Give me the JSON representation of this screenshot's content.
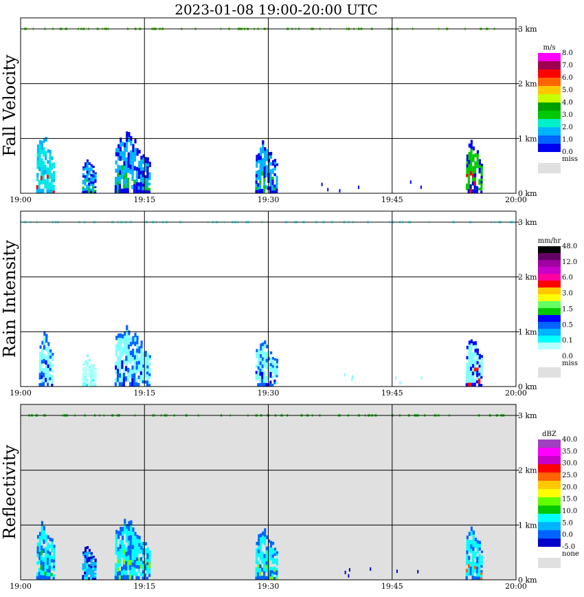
{
  "title": "2023-01-08   19:00-20:00 UTC",
  "chart_data": {
    "type": "heatmap",
    "x_tick_labels": [
      "19:00",
      "19:15",
      "19:30",
      "19:45",
      "20:00"
    ],
    "x_ticks_minutes": [
      0,
      15,
      30,
      45,
      60
    ],
    "xlim_minutes": [
      0,
      60
    ],
    "y_tick_labels": [
      "0 km",
      "1 km",
      "2 km",
      "3 km"
    ],
    "y_ticks_km": [
      0,
      1,
      2,
      3
    ],
    "ylim_km": [
      0,
      3.2
    ],
    "grid": true,
    "panels": [
      {
        "name": "Fall Velocity",
        "background": "#ffffff",
        "colorbar": {
          "unit": "m/s",
          "colors": [
            "#e0e0e0",
            "#0000f0",
            "#0064ff",
            "#00b4ff",
            "#00f0c8",
            "#00c800",
            "#00a000",
            "#c8ff00",
            "#ffc800",
            "#ff6400",
            "#ff0000",
            "#a00050",
            "#ff00ff"
          ],
          "labels": [
            "miss",
            "0.0",
            "1.0",
            "2.0",
            "3.0",
            "4.0",
            "5.0",
            "6.0",
            "7.0",
            "8.0"
          ]
        },
        "echoes": [
          {
            "t0": 2.0,
            "t1": 4.2,
            "top": 1.15,
            "c": "#00e6e6",
            "c2": "#00b4ff",
            "core": "#ff0000"
          },
          {
            "t0": 7.5,
            "t1": 9.2,
            "top": 0.72,
            "c": "#00b4ff",
            "c2": "#0000f0",
            "core": "#00c800"
          },
          {
            "t0": 11.5,
            "t1": 15.8,
            "top": 1.2,
            "c": "#00b4ff",
            "c2": "#0000f0",
            "core": "#00c800"
          },
          {
            "t0": 28.5,
            "t1": 31.2,
            "top": 1.0,
            "c": "#00b4ff",
            "c2": "#0000f0",
            "core": "#00c800"
          },
          {
            "t0": 54.0,
            "t1": 56.0,
            "top": 1.05,
            "c": "#00c800",
            "c2": "#0000f0",
            "core": "#ff0000"
          }
        ],
        "layer_color": "#66dd33"
      },
      {
        "name": "Rain Intensity",
        "background": "#ffffff",
        "colorbar": {
          "unit": "mm/hr",
          "colors": [
            "#e0e0e0",
            "#ffffff",
            "#b4ffff",
            "#00ffff",
            "#00b4ff",
            "#0064ff",
            "#0000ff",
            "#00c800",
            "#64ff64",
            "#ffff00",
            "#ffc800",
            "#ff0000",
            "#ff00a0",
            "#c800c8",
            "#a000a0",
            "#640064",
            "#000000"
          ],
          "labels": [
            "miss",
            "0.0",
            "0.1",
            "0.5",
            "1.5",
            "3.0",
            "6.0",
            "12.0",
            "48.0"
          ]
        },
        "echoes": [
          {
            "t0": 2.3,
            "t1": 4.0,
            "top": 1.1,
            "c": "#80ffff",
            "c2": "#0064ff",
            "core": "#0000ff"
          },
          {
            "t0": 7.5,
            "t1": 9.2,
            "top": 0.62,
            "c": "#b4ffff",
            "c2": "#80ffff",
            "core": "#00ffff"
          },
          {
            "t0": 11.5,
            "t1": 15.8,
            "top": 1.2,
            "c": "#80ffff",
            "c2": "#0064ff",
            "core": "#0000ff"
          },
          {
            "t0": 28.5,
            "t1": 31.2,
            "top": 0.95,
            "c": "#80ffff",
            "c2": "#0064ff",
            "core": "#0000ff"
          },
          {
            "t0": 54.0,
            "t1": 56.0,
            "top": 1.0,
            "c": "#80ffff",
            "c2": "#0000ff",
            "core": "#ff0000"
          }
        ],
        "layer_color": "#80ffff"
      },
      {
        "name": "Reflectivity",
        "background": "#e0e0e0",
        "colorbar": {
          "unit": "dBZ",
          "colors": [
            "#e0e0e0",
            "#0000c8",
            "#0064ff",
            "#00b4ff",
            "#00ffff",
            "#00c800",
            "#64ff00",
            "#ffff00",
            "#ffc800",
            "#ff6400",
            "#ff0000",
            "#c800c8",
            "#ff00ff",
            "#a040c0"
          ],
          "labels": [
            "none",
            "-5.0",
            "0.0",
            "5.0",
            "10.0",
            "15.0",
            "20.0",
            "25.0",
            "30.0",
            "35.0",
            "40.0"
          ]
        },
        "echoes": [
          {
            "t0": 2.0,
            "t1": 4.2,
            "top": 1.15,
            "c": "#00ffff",
            "c2": "#0064ff",
            "core": "#00c800"
          },
          {
            "t0": 7.5,
            "t1": 9.2,
            "top": 0.72,
            "c": "#00b4ff",
            "c2": "#0000c8",
            "core": "#00ffff"
          },
          {
            "t0": 11.5,
            "t1": 15.8,
            "top": 1.2,
            "c": "#00ffff",
            "c2": "#0064ff",
            "core": "#64ff00"
          },
          {
            "t0": 28.5,
            "t1": 31.2,
            "top": 1.0,
            "c": "#00ffff",
            "c2": "#0064ff",
            "core": "#64ff00"
          },
          {
            "t0": 54.0,
            "t1": 56.0,
            "top": 1.05,
            "c": "#00ffff",
            "c2": "#0064ff",
            "core": "#ff6400"
          }
        ],
        "layer_color": "#33cc33"
      }
    ]
  }
}
